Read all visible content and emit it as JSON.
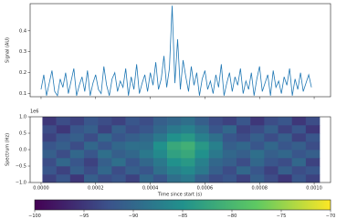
{
  "chart_data": [
    {
      "type": "line",
      "ylabel": "Signal (AU)",
      "color": "#1f77b4",
      "xlim": [
        -4e-05,
        0.00106
      ],
      "ylim": [
        0.085,
        0.53
      ],
      "yticks": [
        0.1,
        0.2,
        0.3,
        0.4
      ],
      "x": [
        0,
        1e-05,
        2e-05,
        3e-05,
        4e-05,
        5e-05,
        6e-05,
        7e-05,
        8e-05,
        9e-05,
        0.0001,
        0.00011,
        0.00012,
        0.00013,
        0.00014,
        0.00015,
        0.00016,
        0.00017,
        0.00018,
        0.00019,
        0.0002,
        0.00021,
        0.00022,
        0.00023,
        0.00024,
        0.00025,
        0.00026,
        0.00027,
        0.00028,
        0.00029,
        0.0003,
        0.00031,
        0.00032,
        0.00033,
        0.00034,
        0.00035,
        0.00036,
        0.00037,
        0.00038,
        0.00039,
        0.0004,
        0.00041,
        0.00042,
        0.00043,
        0.00044,
        0.00045,
        0.00046,
        0.00047,
        0.00048,
        0.00049,
        0.0005,
        0.00051,
        0.00052,
        0.00053,
        0.00054,
        0.00055,
        0.00056,
        0.00057,
        0.00058,
        0.00059,
        0.0006,
        0.00061,
        0.00062,
        0.00063,
        0.00064,
        0.00065,
        0.00066,
        0.00067,
        0.00068,
        0.00069,
        0.0007,
        0.00071,
        0.00072,
        0.00073,
        0.00074,
        0.00075,
        0.00076,
        0.00077,
        0.00078,
        0.00079,
        0.0008,
        0.00081,
        0.00082,
        0.00083,
        0.00084,
        0.00085,
        0.00086,
        0.00087,
        0.00088,
        0.00089,
        0.0009,
        0.00091,
        0.00092,
        0.00093,
        0.00094,
        0.00095,
        0.00096,
        0.00097,
        0.00098,
        0.00099
      ],
      "values": [
        0.12,
        0.19,
        0.09,
        0.15,
        0.21,
        0.11,
        0.09,
        0.17,
        0.13,
        0.2,
        0.1,
        0.16,
        0.22,
        0.09,
        0.14,
        0.18,
        0.11,
        0.21,
        0.09,
        0.15,
        0.19,
        0.12,
        0.1,
        0.23,
        0.14,
        0.09,
        0.17,
        0.2,
        0.11,
        0.16,
        0.13,
        0.22,
        0.09,
        0.18,
        0.12,
        0.24,
        0.1,
        0.15,
        0.19,
        0.11,
        0.2,
        0.14,
        0.25,
        0.12,
        0.17,
        0.28,
        0.13,
        0.22,
        0.52,
        0.15,
        0.36,
        0.12,
        0.26,
        0.18,
        0.11,
        0.23,
        0.14,
        0.2,
        0.09,
        0.17,
        0.21,
        0.12,
        0.16,
        0.1,
        0.19,
        0.13,
        0.24,
        0.09,
        0.15,
        0.2,
        0.11,
        0.18,
        0.14,
        0.22,
        0.1,
        0.16,
        0.12,
        0.2,
        0.09,
        0.17,
        0.23,
        0.11,
        0.15,
        0.19,
        0.09,
        0.21,
        0.13,
        0.16,
        0.1,
        0.18,
        0.14,
        0.22,
        0.09,
        0.17,
        0.12,
        0.2,
        0.11,
        0.15,
        0.19,
        0.13
      ]
    },
    {
      "type": "heatmap",
      "xlabel": "Time since start (s)",
      "ylabel": "Spectrum (Hz)",
      "y_offset_label": "1e6",
      "xlim": [
        -4e-05,
        0.00106
      ],
      "ylim": [
        -1000000,
        1000000
      ],
      "x_extent": [
        5e-06,
        0.00102
      ],
      "y_extent": [
        -1000000,
        1000000
      ],
      "xticks": [
        {
          "value": 0,
          "label": "0.0000"
        },
        {
          "value": 0.0002,
          "label": "0.0002"
        },
        {
          "value": 0.0004,
          "label": "0.0004"
        },
        {
          "value": 0.0006,
          "label": "0.0006"
        },
        {
          "value": 0.0008,
          "label": "0.0008"
        },
        {
          "value": 0.001,
          "label": "0.0010"
        }
      ],
      "yticks": [
        {
          "value": -1000000,
          "label": "−1.0"
        },
        {
          "value": -500000,
          "label": "−0.5"
        },
        {
          "value": 0,
          "label": "0.0"
        },
        {
          "value": 500000,
          "label": "0.5"
        },
        {
          "value": 1000000,
          "label": "1.0"
        }
      ],
      "colormap": "viridis",
      "clim": [
        -100,
        -70
      ],
      "cticks": [
        {
          "value": -100,
          "label": "−100"
        },
        {
          "value": -95,
          "label": "−95"
        },
        {
          "value": -90,
          "label": "−90"
        },
        {
          "value": -85,
          "label": "−85"
        },
        {
          "value": -80,
          "label": "−80"
        },
        {
          "value": -75,
          "label": "−75"
        },
        {
          "value": -70,
          "label": "−70"
        }
      ],
      "values": [
        [
          -94,
          -92,
          -95,
          -91,
          -93,
          -92,
          -94,
          -90,
          -92,
          -89,
          -88,
          -91,
          -93,
          -92,
          -94,
          -91,
          -93,
          -95,
          -92,
          -94
        ],
        [
          -92,
          -94,
          -91,
          -93,
          -90,
          -93,
          -91,
          -92,
          -89,
          -87,
          -86,
          -88,
          -91,
          -93,
          -90,
          -92,
          -94,
          -91,
          -93,
          -92
        ],
        [
          -93,
          -90,
          -92,
          -94,
          -91,
          -89,
          -92,
          -90,
          -88,
          -85,
          -84,
          -87,
          -90,
          -91,
          -93,
          -90,
          -92,
          -93,
          -90,
          -94
        ],
        [
          -91,
          -93,
          -90,
          -92,
          -89,
          -91,
          -90,
          -88,
          -86,
          -83,
          -82,
          -85,
          -88,
          -90,
          -91,
          -89,
          -91,
          -90,
          -92,
          -91
        ],
        [
          -92,
          -91,
          -93,
          -90,
          -92,
          -90,
          -89,
          -89,
          -85,
          -82,
          -81,
          -84,
          -87,
          -91,
          -90,
          -92,
          -90,
          -92,
          -91,
          -93
        ],
        [
          -94,
          -92,
          -91,
          -93,
          -90,
          -92,
          -91,
          -90,
          -88,
          -85,
          -84,
          -87,
          -89,
          -92,
          -93,
          -91,
          -93,
          -91,
          -94,
          -92
        ],
        [
          -93,
          -95,
          -92,
          -91,
          -94,
          -91,
          -93,
          -92,
          -90,
          -88,
          -87,
          -89,
          -92,
          -90,
          -94,
          -93,
          -91,
          -94,
          -92,
          -95
        ],
        [
          -95,
          -93,
          -94,
          -92,
          -93,
          -94,
          -92,
          -93,
          -91,
          -90,
          -89,
          -91,
          -93,
          -94,
          -92,
          -95,
          -93,
          -92,
          -95,
          -93
        ]
      ]
    }
  ]
}
